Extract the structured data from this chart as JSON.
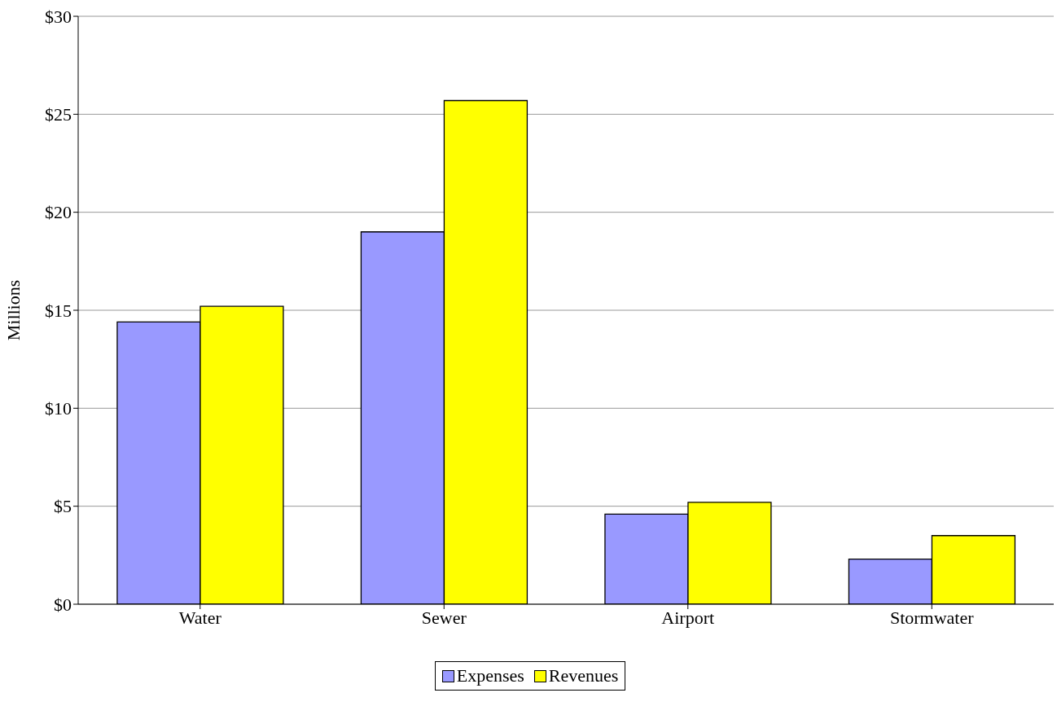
{
  "chart_data": {
    "type": "bar",
    "ylabel": "Millions",
    "categories": [
      "Water",
      "Sewer",
      "Airport",
      "Stormwater"
    ],
    "series": [
      {
        "name": "Expenses",
        "color": "#9999ff",
        "values": [
          14.4,
          19.0,
          4.6,
          2.3
        ]
      },
      {
        "name": "Revenues",
        "color": "#ffff00",
        "values": [
          15.2,
          25.7,
          5.2,
          3.5
        ]
      }
    ],
    "ylim": [
      0,
      30
    ],
    "yticks": [
      {
        "value": 0,
        "label": "$0"
      },
      {
        "value": 5,
        "label": "$5"
      },
      {
        "value": 10,
        "label": "$10"
      },
      {
        "value": 15,
        "label": "$15"
      },
      {
        "value": 20,
        "label": "$20"
      },
      {
        "value": 25,
        "label": "$25"
      },
      {
        "value": 30,
        "label": "$30"
      }
    ],
    "grid": "y",
    "legend": "bottom"
  }
}
